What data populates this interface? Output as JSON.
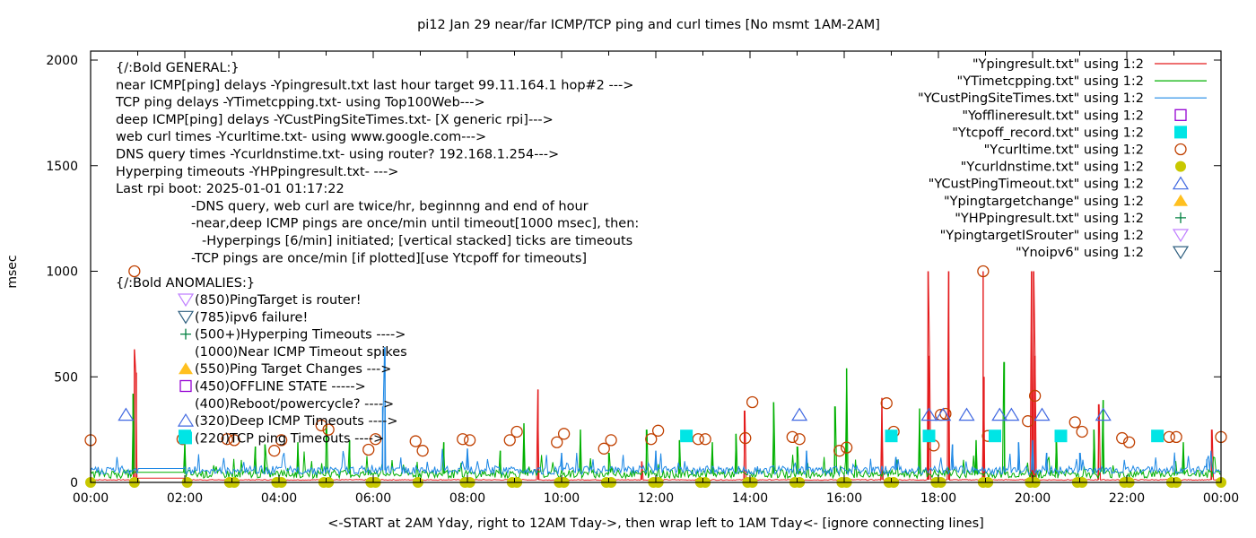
{
  "chart_data": {
    "type": "line",
    "title": "pi12  Jan 29  near/far ICMP/TCP ping and curl times [No msmt 1AM-2AM]",
    "xlabel": "<-START at 2AM Yday, right to 12AM Tday->, then wrap left to 1AM Tday<- [ignore connecting lines]",
    "ylabel": "msec",
    "xlim_hours": [
      0,
      24
    ],
    "ylim": [
      0,
      2000
    ],
    "x_ticks": [
      "00:00",
      "02:00",
      "04:00",
      "06:00",
      "08:00",
      "10:00",
      "12:00",
      "14:00",
      "16:00",
      "18:00",
      "20:00",
      "22:00",
      "00:00"
    ],
    "y_ticks": [
      "0",
      "500",
      "1000",
      "1500",
      "2000"
    ],
    "y_tick_values": [
      0,
      500,
      1000,
      1500,
      2000
    ],
    "legend_position": "top-right",
    "legend": [
      {
        "label": "\"Ypingresult.txt\" using 1:2",
        "style": "line",
        "color": "#e41a1c"
      },
      {
        "label": "\"YTimetcpping.txt\" using 1:2",
        "style": "line",
        "color": "#00b000"
      },
      {
        "label": "\"YCustPingSiteTimes.txt\" using 1:2",
        "style": "line",
        "color": "#1e88e5"
      },
      {
        "label": "\"Yofflineresult.txt\" using 1:2",
        "style": "open-square",
        "color": "#9400d3"
      },
      {
        "label": "\"Ytcpoff_record.txt\" using 1:2",
        "style": "filled-square",
        "color": "#00e5e5"
      },
      {
        "label": "\"Ycurltime.txt\" using 1:2",
        "style": "open-circle",
        "color": "#c04000"
      },
      {
        "label": "\"Ycurldnstime.txt\" using 1:2",
        "style": "filled-circle",
        "color": "#c8c800"
      },
      {
        "label": "\"YCustPingTimeout.txt\" using 1:2",
        "style": "open-triangle-up",
        "color": "#4169e1"
      },
      {
        "label": "\"Ypingtargetchange\" using 1:2",
        "style": "filled-triangle-up",
        "color": "#ffc020"
      },
      {
        "label": "\"YHPpingresult.txt\" using 1:2",
        "style": "plus",
        "color": "#008040"
      },
      {
        "label": "\"YpingtargetISrouter\" using 1:2",
        "style": "open-triangle-down",
        "color": "#c080ff"
      },
      {
        "label": "\"Ynoipv6\" using 1:2",
        "style": "open-triangle-down",
        "color": "#306080"
      }
    ],
    "general_notes": [
      "{/:Bold GENERAL:}",
      "near ICMP[ping] delays -Ypingresult.txt last hour target 99.11.164.1 hop#2 --->",
      "TCP ping delays -YTimetcpping.txt- using Top100Web--->",
      "deep ICMP[ping] delays -YCustPingSiteTimes.txt- [X generic rpi]--->",
      "web curl times -Ycurltime.txt- using www.google.com--->",
      "DNS query times -Ycurldnstime.txt- using router? 192.168.1.254--->",
      "Hyperping timeouts -YHPpingresult.txt- --->",
      "Last rpi boot: 2025-01-01 01:17:22",
      "-DNS query, web curl are twice/hr, beginnng and end of hour",
      "-near,deep ICMP pings are once/min until timeout[1000 msec], then:",
      "-Hyperpings [6/min] initiated; [vertical stacked] ticks are timeouts",
      "-TCP pings are once/min [if plotted][use Ytcpoff for timeouts]"
    ],
    "anomalies_title": "{/:Bold ANOMALIES:}",
    "anomalies": [
      {
        "text": "(850)PingTarget is router!",
        "marker": "open-triangle-down",
        "color": "#c080ff"
      },
      {
        "text": "(785)ipv6 failure!",
        "marker": "open-triangle-down",
        "color": "#306080"
      },
      {
        "text": "(500+)Hyperping Timeouts ---->",
        "marker": "plus",
        "color": "#008040"
      },
      {
        "text": "(1000)Near ICMP Timeout spikes",
        "marker": "none",
        "color": ""
      },
      {
        "text": "(550)Ping Target Changes --->",
        "marker": "filled-triangle-up",
        "color": "#ffc020"
      },
      {
        "text": "(450)OFFLINE STATE ----->",
        "marker": "open-square",
        "color": "#9400d3"
      },
      {
        "text": "(400)Reboot/powercycle? ---->",
        "marker": "none",
        "color": ""
      },
      {
        "text": "(320)Deep ICMP Timeouts ---->",
        "marker": "open-triangle-up",
        "color": "#4169e1"
      },
      {
        "text": "(220)TCP ping Timeouts ---->",
        "marker": "filled-square",
        "color": "#00e5e5"
      }
    ],
    "series": [
      {
        "name": "Ypingresult.txt",
        "color": "#e41a1c",
        "baseline": 12,
        "spikes_hours_msec": [
          [
            0.93,
            630
          ],
          [
            0.97,
            520
          ],
          [
            9.5,
            440
          ],
          [
            11.7,
            100
          ],
          [
            13.88,
            340
          ],
          [
            16.8,
            400
          ],
          [
            17.78,
            1000
          ],
          [
            17.8,
            600
          ],
          [
            18.22,
            1000
          ],
          [
            18.95,
            1000
          ],
          [
            18.97,
            500
          ],
          [
            19.98,
            1000
          ],
          [
            20.02,
            1000
          ],
          [
            20.05,
            600
          ],
          [
            21.4,
            370
          ],
          [
            23.8,
            250
          ]
        ]
      },
      {
        "name": "YTimetcpping.txt",
        "color": "#00b000",
        "baseline": 40,
        "spikes_hours_msec": [
          [
            0.9,
            420
          ],
          [
            2.0,
            200
          ],
          [
            3.5,
            170
          ],
          [
            3.7,
            180
          ],
          [
            4.4,
            190
          ],
          [
            5.0,
            270
          ],
          [
            5.5,
            200
          ],
          [
            7.5,
            190
          ],
          [
            8.7,
            150
          ],
          [
            9.2,
            280
          ],
          [
            10.4,
            250
          ],
          [
            11.0,
            140
          ],
          [
            11.8,
            250
          ],
          [
            12.5,
            200
          ],
          [
            13.2,
            190
          ],
          [
            13.7,
            230
          ],
          [
            14.5,
            380
          ],
          [
            15.0,
            170
          ],
          [
            15.8,
            360
          ],
          [
            16.05,
            540
          ],
          [
            17.6,
            350
          ],
          [
            18.8,
            200
          ],
          [
            19.4,
            570
          ],
          [
            20.5,
            230
          ],
          [
            21.3,
            250
          ],
          [
            21.5,
            390
          ],
          [
            23.2,
            190
          ]
        ]
      },
      {
        "name": "YCustPingSiteTimes.txt",
        "color": "#1e88e5",
        "baseline": 58,
        "spikes_hours_msec": [
          [
            0.6,
            70
          ],
          [
            6.2,
            360
          ],
          [
            6.25,
            640
          ],
          [
            8.0,
            160
          ],
          [
            10.0,
            140
          ],
          [
            12.0,
            150
          ],
          [
            15.2,
            150
          ],
          [
            17.1,
            120
          ],
          [
            18.3,
            180
          ],
          [
            19.7,
            190
          ],
          [
            20.0,
            200
          ],
          [
            20.3,
            140
          ],
          [
            21.0,
            140
          ],
          [
            23.7,
            110
          ]
        ]
      }
    ],
    "markers": {
      "Ycurltime": {
        "color": "#c04000",
        "points_hours_msec": [
          [
            0,
            200
          ],
          [
            0.93,
            1000
          ],
          [
            1.95,
            205
          ],
          [
            2.9,
            205
          ],
          [
            3.05,
            200
          ],
          [
            3.9,
            150
          ],
          [
            4.05,
            200
          ],
          [
            4.9,
            270
          ],
          [
            5.05,
            250
          ],
          [
            5.9,
            155
          ],
          [
            6.05,
            205
          ],
          [
            6.9,
            195
          ],
          [
            7.05,
            150
          ],
          [
            7.9,
            205
          ],
          [
            8.05,
            200
          ],
          [
            8.9,
            200
          ],
          [
            9.05,
            240
          ],
          [
            9.9,
            190
          ],
          [
            10.05,
            230
          ],
          [
            10.9,
            160
          ],
          [
            11.05,
            200
          ],
          [
            11.9,
            205
          ],
          [
            12.05,
            245
          ],
          [
            12.9,
            205
          ],
          [
            13.05,
            205
          ],
          [
            13.9,
            210
          ],
          [
            14.05,
            380
          ],
          [
            14.9,
            215
          ],
          [
            15.05,
            205
          ],
          [
            15.9,
            150
          ],
          [
            16.05,
            165
          ],
          [
            16.9,
            375
          ],
          [
            17.05,
            240
          ],
          [
            17.9,
            175
          ],
          [
            18.05,
            320
          ],
          [
            18.15,
            325
          ],
          [
            18.95,
            1000
          ],
          [
            19.05,
            220
          ],
          [
            19.9,
            290
          ],
          [
            20.05,
            410
          ],
          [
            20.9,
            285
          ],
          [
            21.05,
            240
          ],
          [
            21.9,
            210
          ],
          [
            22.05,
            190
          ],
          [
            22.9,
            215
          ],
          [
            23.05,
            215
          ],
          [
            24,
            215
          ]
        ]
      },
      "Ycurldnstime": {
        "color": "#c8c800",
        "points_hours_msec": [
          [
            0,
            0
          ],
          [
            0.93,
            0
          ],
          [
            2.05,
            0
          ],
          [
            2.95,
            0
          ],
          [
            3.05,
            0
          ],
          [
            3.95,
            0
          ],
          [
            4.05,
            0
          ],
          [
            4.95,
            0
          ],
          [
            5.05,
            0
          ],
          [
            5.95,
            0
          ],
          [
            6.05,
            0
          ],
          [
            6.95,
            0
          ],
          [
            7.95,
            0
          ],
          [
            8.05,
            0
          ],
          [
            8.95,
            0
          ],
          [
            9.05,
            0
          ],
          [
            9.95,
            0
          ],
          [
            10.05,
            0
          ],
          [
            10.95,
            0
          ],
          [
            11.05,
            0
          ],
          [
            11.95,
            0
          ],
          [
            12.05,
            0
          ],
          [
            12.95,
            0
          ],
          [
            13.05,
            0
          ],
          [
            13.95,
            0
          ],
          [
            14.05,
            0
          ],
          [
            14.95,
            0
          ],
          [
            15.05,
            0
          ],
          [
            15.95,
            0
          ],
          [
            16.05,
            0
          ],
          [
            16.95,
            0
          ],
          [
            17.05,
            0
          ],
          [
            17.95,
            0
          ],
          [
            18.05,
            0
          ],
          [
            18.95,
            0
          ],
          [
            19.05,
            0
          ],
          [
            19.95,
            0
          ],
          [
            20.05,
            0
          ],
          [
            20.95,
            0
          ],
          [
            21.05,
            0
          ],
          [
            21.95,
            0
          ],
          [
            22.05,
            0
          ],
          [
            22.95,
            0
          ],
          [
            23.05,
            0
          ],
          [
            24,
            0
          ]
        ]
      },
      "YCustPingTimeout": {
        "color": "#4169e1",
        "points_hours_msec": [
          [
            0.75,
            320
          ],
          [
            15.05,
            320
          ],
          [
            17.8,
            320
          ],
          [
            18.1,
            320
          ],
          [
            18.6,
            320
          ],
          [
            19.3,
            320
          ],
          [
            19.55,
            320
          ],
          [
            20.2,
            320
          ],
          [
            21.5,
            320
          ]
        ]
      },
      "Ytcpoff_record": {
        "color": "#00e5e5",
        "points_hours_msec": [
          [
            2.0,
            220
          ],
          [
            12.65,
            220
          ],
          [
            17.0,
            220
          ],
          [
            17.8,
            220
          ],
          [
            19.2,
            220
          ],
          [
            20.6,
            220
          ],
          [
            22.65,
            220
          ]
        ]
      }
    }
  }
}
